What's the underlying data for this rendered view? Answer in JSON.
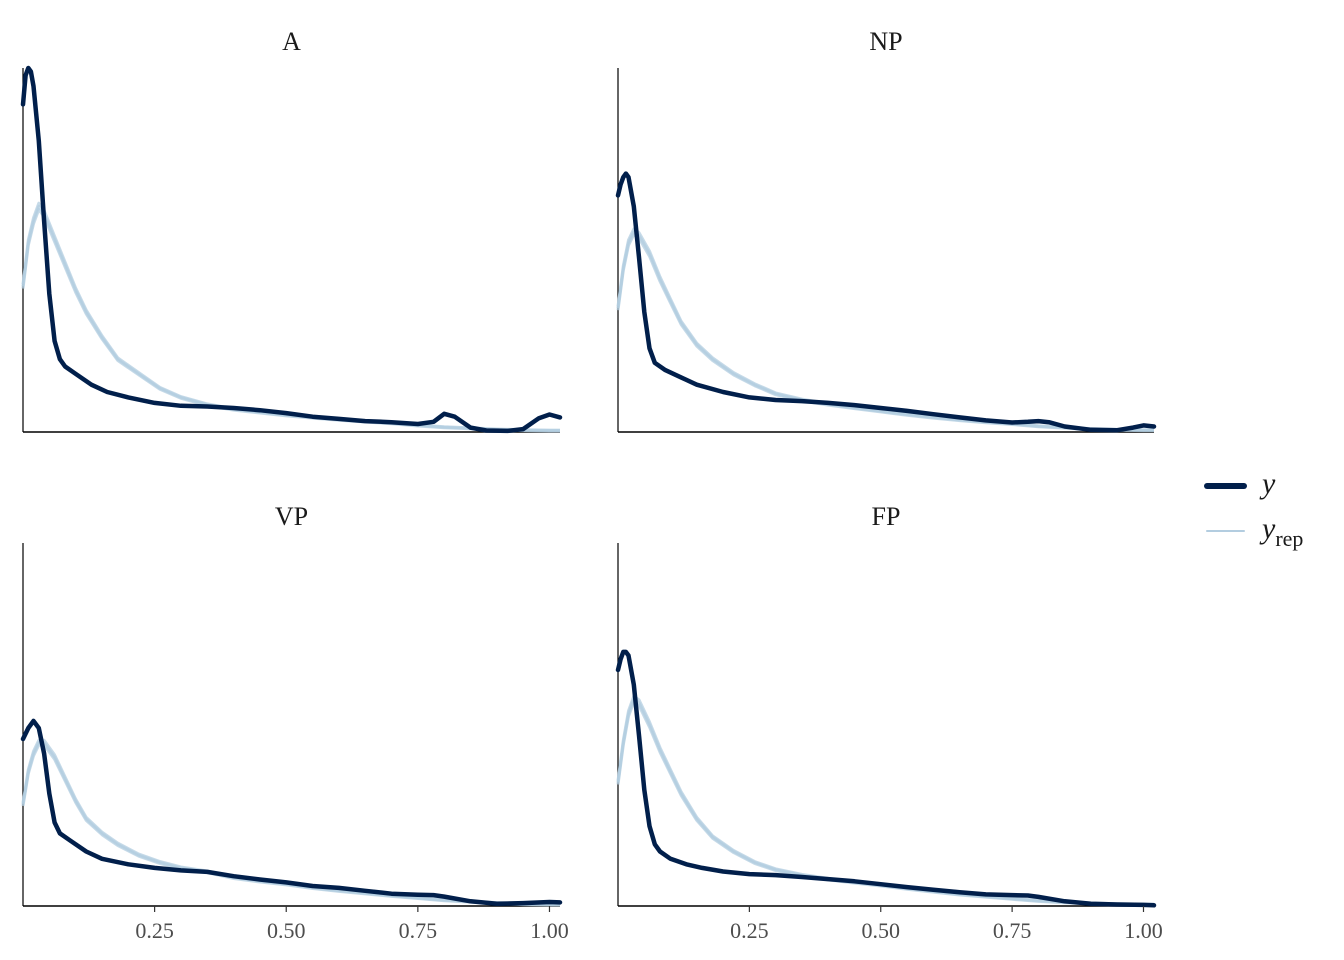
{
  "chart_data": {
    "type": "line",
    "description": "posterior predictive density overlay",
    "x_range": [
      0,
      1.02
    ],
    "x_ticks": [
      "0.25",
      "0.50",
      "0.75",
      "1.00"
    ],
    "grid": false,
    "y_axis_labels": false,
    "legend": {
      "placement": "right",
      "entries": [
        {
          "label": "y",
          "subscript": "",
          "color": "#011f4b",
          "style": "thick"
        },
        {
          "label": "y",
          "subscript": "rep",
          "color": "#b3cde0",
          "style": "thin"
        }
      ]
    },
    "colors": {
      "y": "#011f4b",
      "yrep": "#b3cde0",
      "axis": "#000000"
    },
    "panels": [
      {
        "title": "A",
        "show_x_ticks": false,
        "ymax": 1.0,
        "y": [
          [
            0.0,
            0.9
          ],
          [
            0.005,
            0.98
          ],
          [
            0.01,
            1.0
          ],
          [
            0.015,
            0.99
          ],
          [
            0.02,
            0.95
          ],
          [
            0.03,
            0.8
          ],
          [
            0.04,
            0.58
          ],
          [
            0.05,
            0.38
          ],
          [
            0.06,
            0.25
          ],
          [
            0.07,
            0.2
          ],
          [
            0.08,
            0.18
          ],
          [
            0.1,
            0.16
          ],
          [
            0.13,
            0.13
          ],
          [
            0.16,
            0.11
          ],
          [
            0.2,
            0.095
          ],
          [
            0.25,
            0.08
          ],
          [
            0.3,
            0.072
          ],
          [
            0.35,
            0.07
          ],
          [
            0.4,
            0.066
          ],
          [
            0.45,
            0.06
          ],
          [
            0.5,
            0.052
          ],
          [
            0.55,
            0.042
          ],
          [
            0.6,
            0.036
          ],
          [
            0.65,
            0.03
          ],
          [
            0.7,
            0.027
          ],
          [
            0.75,
            0.022
          ],
          [
            0.78,
            0.028
          ],
          [
            0.8,
            0.05
          ],
          [
            0.82,
            0.042
          ],
          [
            0.85,
            0.012
          ],
          [
            0.88,
            0.004
          ],
          [
            0.92,
            0.003
          ],
          [
            0.95,
            0.008
          ],
          [
            0.98,
            0.038
          ],
          [
            1.0,
            0.048
          ],
          [
            1.02,
            0.04
          ]
        ],
        "yrep": [
          [
            0.0,
            0.4
          ],
          [
            0.01,
            0.52
          ],
          [
            0.02,
            0.58
          ],
          [
            0.03,
            0.62
          ],
          [
            0.04,
            0.6
          ],
          [
            0.06,
            0.53
          ],
          [
            0.08,
            0.46
          ],
          [
            0.1,
            0.39
          ],
          [
            0.12,
            0.33
          ],
          [
            0.15,
            0.26
          ],
          [
            0.18,
            0.2
          ],
          [
            0.22,
            0.16
          ],
          [
            0.26,
            0.12
          ],
          [
            0.3,
            0.095
          ],
          [
            0.35,
            0.075
          ],
          [
            0.4,
            0.062
          ],
          [
            0.45,
            0.054
          ],
          [
            0.5,
            0.046
          ],
          [
            0.55,
            0.04
          ],
          [
            0.6,
            0.034
          ],
          [
            0.65,
            0.029
          ],
          [
            0.7,
            0.024
          ],
          [
            0.75,
            0.018
          ],
          [
            0.8,
            0.013
          ],
          [
            0.85,
            0.01
          ],
          [
            0.9,
            0.007
          ],
          [
            0.95,
            0.005
          ],
          [
            1.0,
            0.004
          ],
          [
            1.02,
            0.004
          ]
        ]
      },
      {
        "title": "NP",
        "show_x_ticks": false,
        "ymax": 1.0,
        "y": [
          [
            0.0,
            0.65
          ],
          [
            0.005,
            0.68
          ],
          [
            0.01,
            0.7
          ],
          [
            0.015,
            0.71
          ],
          [
            0.02,
            0.7
          ],
          [
            0.03,
            0.62
          ],
          [
            0.04,
            0.48
          ],
          [
            0.05,
            0.33
          ],
          [
            0.06,
            0.23
          ],
          [
            0.07,
            0.19
          ],
          [
            0.09,
            0.17
          ],
          [
            0.12,
            0.15
          ],
          [
            0.15,
            0.13
          ],
          [
            0.2,
            0.11
          ],
          [
            0.25,
            0.095
          ],
          [
            0.3,
            0.088
          ],
          [
            0.35,
            0.085
          ],
          [
            0.4,
            0.08
          ],
          [
            0.45,
            0.074
          ],
          [
            0.5,
            0.066
          ],
          [
            0.55,
            0.058
          ],
          [
            0.6,
            0.049
          ],
          [
            0.65,
            0.04
          ],
          [
            0.7,
            0.032
          ],
          [
            0.75,
            0.026
          ],
          [
            0.78,
            0.028
          ],
          [
            0.8,
            0.03
          ],
          [
            0.82,
            0.027
          ],
          [
            0.85,
            0.015
          ],
          [
            0.9,
            0.006
          ],
          [
            0.95,
            0.005
          ],
          [
            0.98,
            0.012
          ],
          [
            1.0,
            0.018
          ],
          [
            1.02,
            0.015
          ]
        ],
        "yrep": [
          [
            0.0,
            0.34
          ],
          [
            0.01,
            0.45
          ],
          [
            0.02,
            0.52
          ],
          [
            0.03,
            0.55
          ],
          [
            0.04,
            0.54
          ],
          [
            0.06,
            0.49
          ],
          [
            0.08,
            0.42
          ],
          [
            0.1,
            0.36
          ],
          [
            0.12,
            0.3
          ],
          [
            0.15,
            0.24
          ],
          [
            0.18,
            0.2
          ],
          [
            0.22,
            0.16
          ],
          [
            0.26,
            0.13
          ],
          [
            0.3,
            0.105
          ],
          [
            0.35,
            0.088
          ],
          [
            0.4,
            0.076
          ],
          [
            0.45,
            0.066
          ],
          [
            0.5,
            0.057
          ],
          [
            0.55,
            0.048
          ],
          [
            0.6,
            0.04
          ],
          [
            0.65,
            0.033
          ],
          [
            0.7,
            0.027
          ],
          [
            0.75,
            0.022
          ],
          [
            0.8,
            0.016
          ],
          [
            0.85,
            0.012
          ],
          [
            0.9,
            0.008
          ],
          [
            0.95,
            0.006
          ],
          [
            1.0,
            0.005
          ],
          [
            1.02,
            0.005
          ]
        ]
      },
      {
        "title": "VP",
        "show_x_ticks": true,
        "ymax": 1.0,
        "y": [
          [
            0.0,
            0.46
          ],
          [
            0.01,
            0.49
          ],
          [
            0.02,
            0.51
          ],
          [
            0.03,
            0.49
          ],
          [
            0.04,
            0.42
          ],
          [
            0.05,
            0.31
          ],
          [
            0.06,
            0.23
          ],
          [
            0.07,
            0.2
          ],
          [
            0.09,
            0.18
          ],
          [
            0.12,
            0.15
          ],
          [
            0.15,
            0.13
          ],
          [
            0.2,
            0.115
          ],
          [
            0.25,
            0.105
          ],
          [
            0.3,
            0.098
          ],
          [
            0.35,
            0.094
          ],
          [
            0.4,
            0.082
          ],
          [
            0.45,
            0.073
          ],
          [
            0.5,
            0.065
          ],
          [
            0.55,
            0.055
          ],
          [
            0.6,
            0.05
          ],
          [
            0.65,
            0.042
          ],
          [
            0.7,
            0.034
          ],
          [
            0.75,
            0.031
          ],
          [
            0.78,
            0.03
          ],
          [
            0.8,
            0.026
          ],
          [
            0.85,
            0.013
          ],
          [
            0.9,
            0.006
          ],
          [
            0.95,
            0.008
          ],
          [
            1.0,
            0.011
          ],
          [
            1.02,
            0.01
          ]
        ],
        "yrep": [
          [
            0.0,
            0.28
          ],
          [
            0.01,
            0.37
          ],
          [
            0.02,
            0.42
          ],
          [
            0.03,
            0.45
          ],
          [
            0.04,
            0.45
          ],
          [
            0.06,
            0.41
          ],
          [
            0.08,
            0.35
          ],
          [
            0.1,
            0.29
          ],
          [
            0.12,
            0.24
          ],
          [
            0.15,
            0.2
          ],
          [
            0.18,
            0.17
          ],
          [
            0.22,
            0.14
          ],
          [
            0.26,
            0.12
          ],
          [
            0.3,
            0.105
          ],
          [
            0.35,
            0.094
          ],
          [
            0.4,
            0.078
          ],
          [
            0.45,
            0.068
          ],
          [
            0.5,
            0.06
          ],
          [
            0.55,
            0.05
          ],
          [
            0.6,
            0.042
          ],
          [
            0.65,
            0.035
          ],
          [
            0.7,
            0.028
          ],
          [
            0.75,
            0.022
          ],
          [
            0.8,
            0.016
          ],
          [
            0.85,
            0.012
          ],
          [
            0.9,
            0.008
          ],
          [
            0.95,
            0.005
          ],
          [
            1.0,
            0.004
          ],
          [
            1.02,
            0.004
          ]
        ]
      },
      {
        "title": "FP",
        "show_x_ticks": true,
        "ymax": 1.0,
        "y": [
          [
            0.0,
            0.65
          ],
          [
            0.005,
            0.68
          ],
          [
            0.01,
            0.7
          ],
          [
            0.015,
            0.7
          ],
          [
            0.02,
            0.69
          ],
          [
            0.03,
            0.61
          ],
          [
            0.04,
            0.47
          ],
          [
            0.05,
            0.32
          ],
          [
            0.06,
            0.22
          ],
          [
            0.07,
            0.17
          ],
          [
            0.08,
            0.15
          ],
          [
            0.1,
            0.13
          ],
          [
            0.13,
            0.115
          ],
          [
            0.16,
            0.105
          ],
          [
            0.2,
            0.095
          ],
          [
            0.25,
            0.088
          ],
          [
            0.3,
            0.085
          ],
          [
            0.35,
            0.08
          ],
          [
            0.4,
            0.074
          ],
          [
            0.45,
            0.068
          ],
          [
            0.5,
            0.06
          ],
          [
            0.55,
            0.052
          ],
          [
            0.6,
            0.045
          ],
          [
            0.65,
            0.038
          ],
          [
            0.7,
            0.032
          ],
          [
            0.75,
            0.03
          ],
          [
            0.78,
            0.029
          ],
          [
            0.8,
            0.025
          ],
          [
            0.85,
            0.013
          ],
          [
            0.9,
            0.006
          ],
          [
            0.95,
            0.004
          ],
          [
            1.0,
            0.003
          ],
          [
            1.02,
            0.002
          ]
        ],
        "yrep": [
          [
            0.0,
            0.34
          ],
          [
            0.01,
            0.45
          ],
          [
            0.02,
            0.53
          ],
          [
            0.03,
            0.57
          ],
          [
            0.04,
            0.56
          ],
          [
            0.06,
            0.5
          ],
          [
            0.08,
            0.43
          ],
          [
            0.1,
            0.37
          ],
          [
            0.12,
            0.31
          ],
          [
            0.15,
            0.24
          ],
          [
            0.18,
            0.19
          ],
          [
            0.22,
            0.15
          ],
          [
            0.26,
            0.12
          ],
          [
            0.3,
            0.1
          ],
          [
            0.35,
            0.085
          ],
          [
            0.4,
            0.074
          ],
          [
            0.45,
            0.065
          ],
          [
            0.5,
            0.057
          ],
          [
            0.55,
            0.048
          ],
          [
            0.6,
            0.04
          ],
          [
            0.65,
            0.032
          ],
          [
            0.7,
            0.026
          ],
          [
            0.75,
            0.02
          ],
          [
            0.8,
            0.014
          ],
          [
            0.85,
            0.01
          ],
          [
            0.9,
            0.007
          ],
          [
            0.95,
            0.005
          ],
          [
            1.0,
            0.004
          ],
          [
            1.02,
            0.004
          ]
        ]
      }
    ]
  }
}
